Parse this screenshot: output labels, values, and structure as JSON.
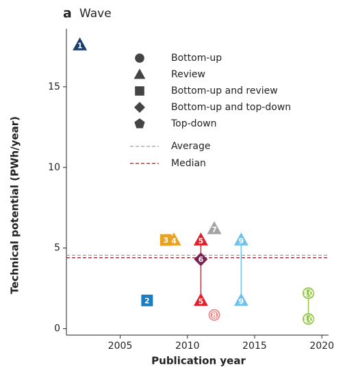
{
  "chart_data": {
    "type": "scatter",
    "panel_label": "a",
    "title": "Wave",
    "x_label": "Publication year",
    "y_label": "Technical potential (PWh/year)",
    "xlim": [
      2001,
      2020.5
    ],
    "ylim": [
      -0.4,
      18.6
    ],
    "xticks": [
      2005,
      2010,
      2015,
      2020
    ],
    "yticks": [
      0,
      5,
      10,
      15
    ],
    "series": [
      {
        "name": "1",
        "color": "#1b3f6e",
        "shape": "triangle",
        "x": [
          2002
        ],
        "y": [
          17.6
        ]
      },
      {
        "name": "2",
        "color": "#1b7ec2",
        "shape": "square",
        "x": [
          2007
        ],
        "y": [
          1.75
        ]
      },
      {
        "name": "3",
        "color": "#e9a122",
        "shape": "square",
        "x": [
          2008.4
        ],
        "y": [
          5.5
        ]
      },
      {
        "name": "4",
        "color": "#e9a122",
        "shape": "triangle",
        "x": [
          2009
        ],
        "y": [
          5.5
        ]
      },
      {
        "name": "5",
        "color": "#e2202b",
        "shape": "triangle",
        "x": [
          2011,
          2011
        ],
        "y": [
          5.5,
          1.75
        ]
      },
      {
        "name": "6",
        "color": "#7b2152",
        "shape": "diamond",
        "x": [
          2011
        ],
        "y": [
          4.3
        ]
      },
      {
        "name": "7",
        "color": "#a3a3a3",
        "shape": "triangle",
        "x": [
          2012
        ],
        "y": [
          6.2
        ]
      },
      {
        "name": "8",
        "color": "#f08a8a",
        "shape": "circle",
        "x": [
          2012
        ],
        "y": [
          0.85
        ]
      },
      {
        "name": "9",
        "color": "#70c2ea",
        "shape": "triangle",
        "x": [
          2014,
          2014
        ],
        "y": [
          5.5,
          1.75
        ]
      },
      {
        "name": "10",
        "color": "#8dc63f",
        "shape": "circle",
        "x": [
          2019,
          2019
        ],
        "y": [
          2.2,
          0.6
        ]
      }
    ],
    "legend": [
      {
        "label": "Bottom-up",
        "shape": "circle"
      },
      {
        "label": "Review",
        "shape": "triangle"
      },
      {
        "label": "Bottom-up and review",
        "shape": "square"
      },
      {
        "label": "Bottom-up and top-down",
        "shape": "diamond"
      },
      {
        "label": "Top-down",
        "shape": "pentagon"
      }
    ],
    "reference_lines": [
      {
        "label": "Average",
        "value": 4.55,
        "color": "#9a9a9a"
      },
      {
        "label": "Median",
        "value": 4.4,
        "color": "#a01c24"
      }
    ]
  }
}
